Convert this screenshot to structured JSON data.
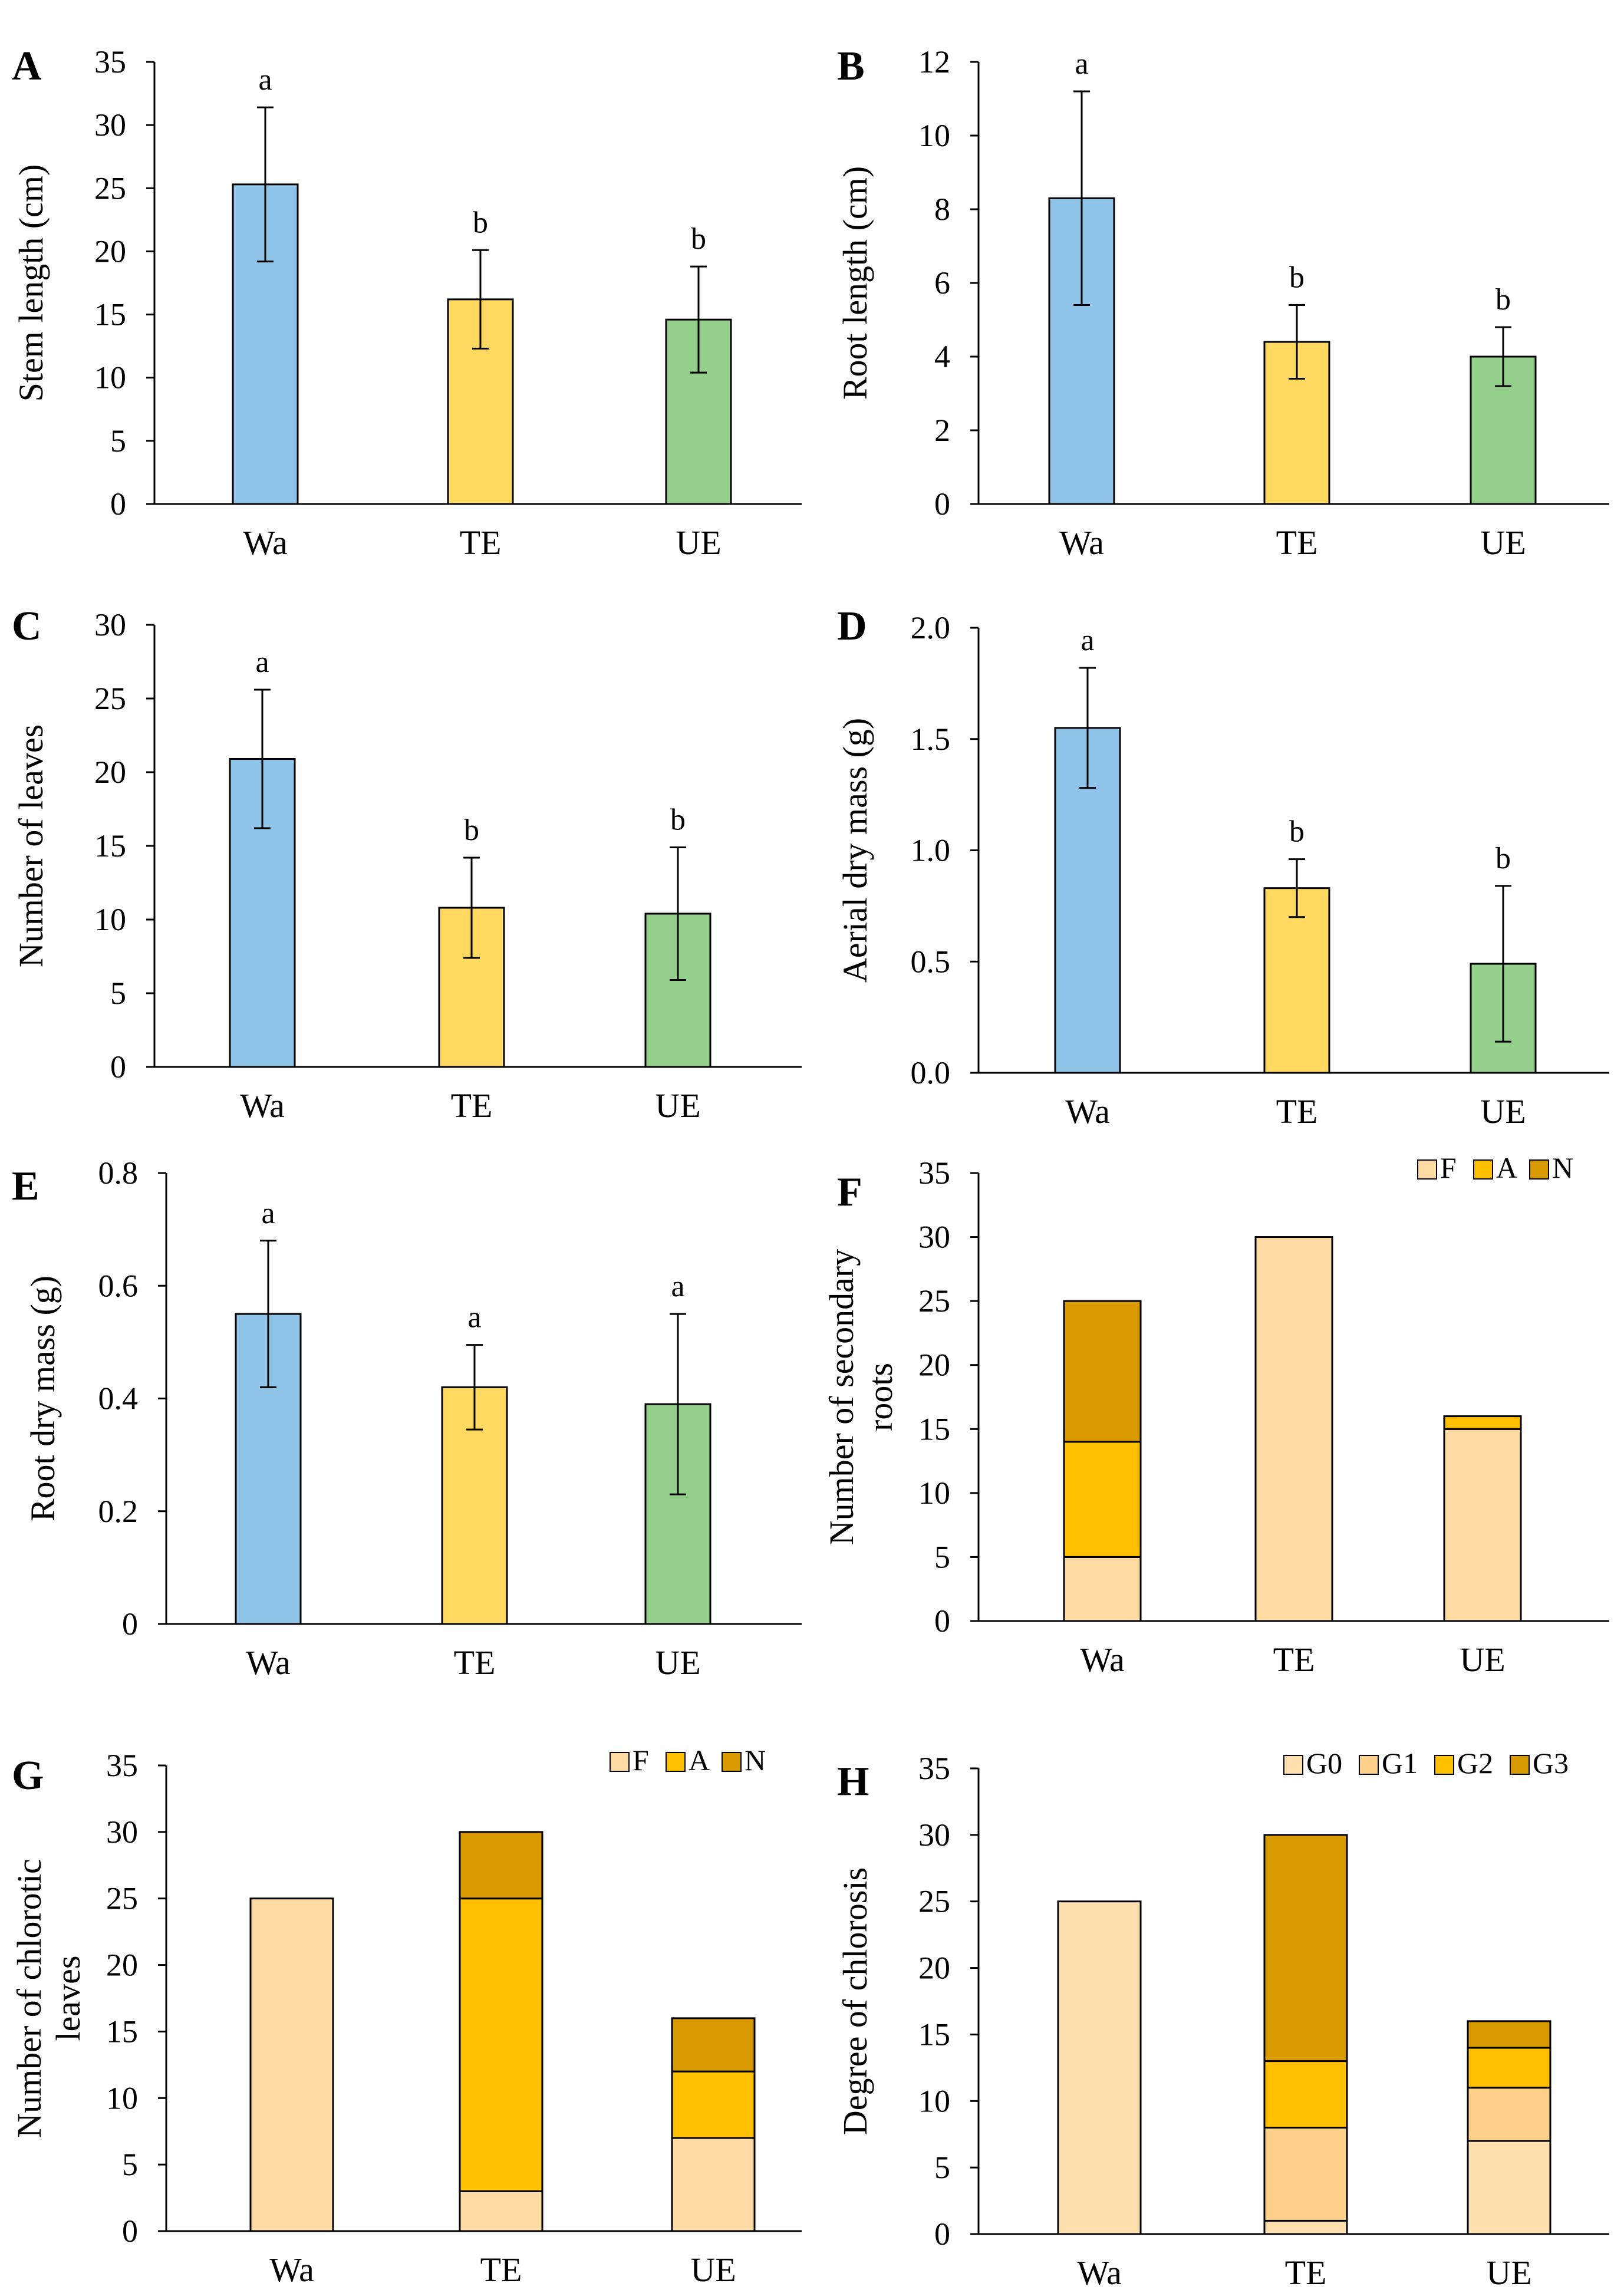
{
  "figure_title": "",
  "colors": {
    "Wa": "#8FC3E8",
    "TE": "#FFD960",
    "UE": "#94D08C",
    "F": "#FFDBA3",
    "A": "#FFC000",
    "N": "#D99A00",
    "G0": "#FFDFAE",
    "G1": "#FFD08A",
    "G2": "#FFC000",
    "G3": "#D99A00"
  },
  "chart_data": [
    {
      "id": "A",
      "panel_label": "A",
      "type": "bar",
      "categories": [
        "Wa",
        "TE",
        "UE"
      ],
      "values": [
        25.3,
        16.2,
        14.6
      ],
      "errors": [
        6.1,
        3.9,
        4.2
      ],
      "significance": [
        "a",
        "b",
        "b"
      ],
      "ylabel": "Stem length  (cm)",
      "ylim": [
        0,
        35
      ],
      "yticks": [
        0,
        5,
        10,
        15,
        20,
        25,
        30,
        35
      ],
      "ytick_labels": [
        "0",
        "5",
        "10",
        "15",
        "20",
        "25",
        "30",
        "35"
      ]
    },
    {
      "id": "B",
      "panel_label": "B",
      "type": "bar",
      "categories": [
        "Wa",
        "TE",
        "UE"
      ],
      "values": [
        8.3,
        4.4,
        4.0
      ],
      "errors": [
        2.9,
        1.0,
        0.8
      ],
      "significance": [
        "a",
        "b",
        "b"
      ],
      "ylabel": "Root length  (cm)",
      "ylim": [
        0,
        12
      ],
      "yticks": [
        0,
        2,
        4,
        6,
        8,
        10,
        12
      ],
      "ytick_labels": [
        "0",
        "2",
        "4",
        "6",
        "8",
        "10",
        "12"
      ]
    },
    {
      "id": "C",
      "panel_label": "C",
      "type": "bar",
      "categories": [
        "Wa",
        "TE",
        "UE"
      ],
      "values": [
        20.9,
        10.8,
        10.4
      ],
      "errors": [
        4.7,
        3.4,
        4.5
      ],
      "significance": [
        "a",
        "b",
        "b"
      ],
      "ylabel": "Number of leaves",
      "ylim": [
        0,
        30
      ],
      "yticks": [
        0,
        5,
        10,
        15,
        20,
        25,
        30
      ],
      "ytick_labels": [
        "0",
        "5",
        "10",
        "15",
        "20",
        "25",
        "30"
      ]
    },
    {
      "id": "D",
      "panel_label": "D",
      "type": "bar",
      "categories": [
        "Wa",
        "TE",
        "UE"
      ],
      "values": [
        1.55,
        0.83,
        0.49
      ],
      "errors": [
        0.27,
        0.13,
        0.35
      ],
      "significance": [
        "a",
        "b",
        "b"
      ],
      "ylabel": "Aerial  dry mass  (g)",
      "ylim": [
        0,
        2.0
      ],
      "yticks": [
        0,
        0.5,
        1.0,
        1.5,
        2.0
      ],
      "ytick_labels": [
        "0.0",
        "0.5",
        "1.0",
        "1.5",
        "2.0"
      ]
    },
    {
      "id": "E",
      "panel_label": "E",
      "type": "bar",
      "categories": [
        "Wa",
        "TE",
        "UE"
      ],
      "values": [
        0.55,
        0.42,
        0.39
      ],
      "errors": [
        0.13,
        0.075,
        0.16
      ],
      "significance": [
        "a",
        "a",
        "a"
      ],
      "ylabel": "Root dry mass  (g)",
      "ylim": [
        0,
        0.8
      ],
      "yticks": [
        0,
        0.2,
        0.4,
        0.6,
        0.8
      ],
      "ytick_labels": [
        "0",
        "0.2",
        "0.4",
        "0.6",
        "0.8"
      ]
    },
    {
      "id": "F",
      "panel_label": "F",
      "type": "stacked-bar",
      "categories": [
        "Wa",
        "TE",
        "UE"
      ],
      "series": [
        {
          "name": "F",
          "values": [
            5,
            30,
            15
          ]
        },
        {
          "name": "A",
          "values": [
            9,
            0,
            1
          ]
        },
        {
          "name": "N",
          "values": [
            11,
            0,
            0
          ]
        }
      ],
      "legend": [
        "F",
        "A",
        "N"
      ],
      "legend_position": "top-right",
      "ylabel_lines": [
        "Number  of  secondary",
        "roots"
      ],
      "ylim": [
        0,
        35
      ],
      "yticks": [
        0,
        5,
        10,
        15,
        20,
        25,
        30,
        35
      ],
      "ytick_labels": [
        "0",
        "5",
        "10",
        "15",
        "20",
        "25",
        "30",
        "35"
      ]
    },
    {
      "id": "G",
      "panel_label": "G",
      "type": "stacked-bar",
      "categories": [
        "Wa",
        "TE",
        "UE"
      ],
      "series": [
        {
          "name": "F",
          "values": [
            25,
            3,
            7
          ]
        },
        {
          "name": "A",
          "values": [
            0,
            22,
            5
          ]
        },
        {
          "name": "N",
          "values": [
            0,
            5,
            4
          ]
        }
      ],
      "legend": [
        "F",
        "A",
        "N"
      ],
      "legend_position": "top-right",
      "ylabel_lines": [
        "Number  of  chlorotic",
        "leaves"
      ],
      "ylim": [
        0,
        35
      ],
      "yticks": [
        0,
        5,
        10,
        15,
        20,
        25,
        30,
        35
      ],
      "ytick_labels": [
        "0",
        "5",
        "10",
        "15",
        "20",
        "25",
        "30",
        "35"
      ]
    },
    {
      "id": "H",
      "panel_label": "H",
      "type": "stacked-bar",
      "categories": [
        "Wa",
        "TE",
        "UE"
      ],
      "series": [
        {
          "name": "G0",
          "values": [
            25,
            1,
            7
          ]
        },
        {
          "name": "G1",
          "values": [
            0,
            7,
            4
          ]
        },
        {
          "name": "G2",
          "values": [
            0,
            5,
            3
          ]
        },
        {
          "name": "G3",
          "values": [
            0,
            17,
            2
          ]
        }
      ],
      "legend": [
        "G0",
        "G1",
        "G2",
        "G3"
      ],
      "legend_position": "top-right",
      "ylabel": "Degree  of  chlorosis",
      "ylim": [
        0,
        35
      ],
      "yticks": [
        0,
        5,
        10,
        15,
        20,
        25,
        30,
        35
      ],
      "ytick_labels": [
        "0",
        "5",
        "10",
        "15",
        "20",
        "25",
        "30",
        "35"
      ]
    }
  ]
}
